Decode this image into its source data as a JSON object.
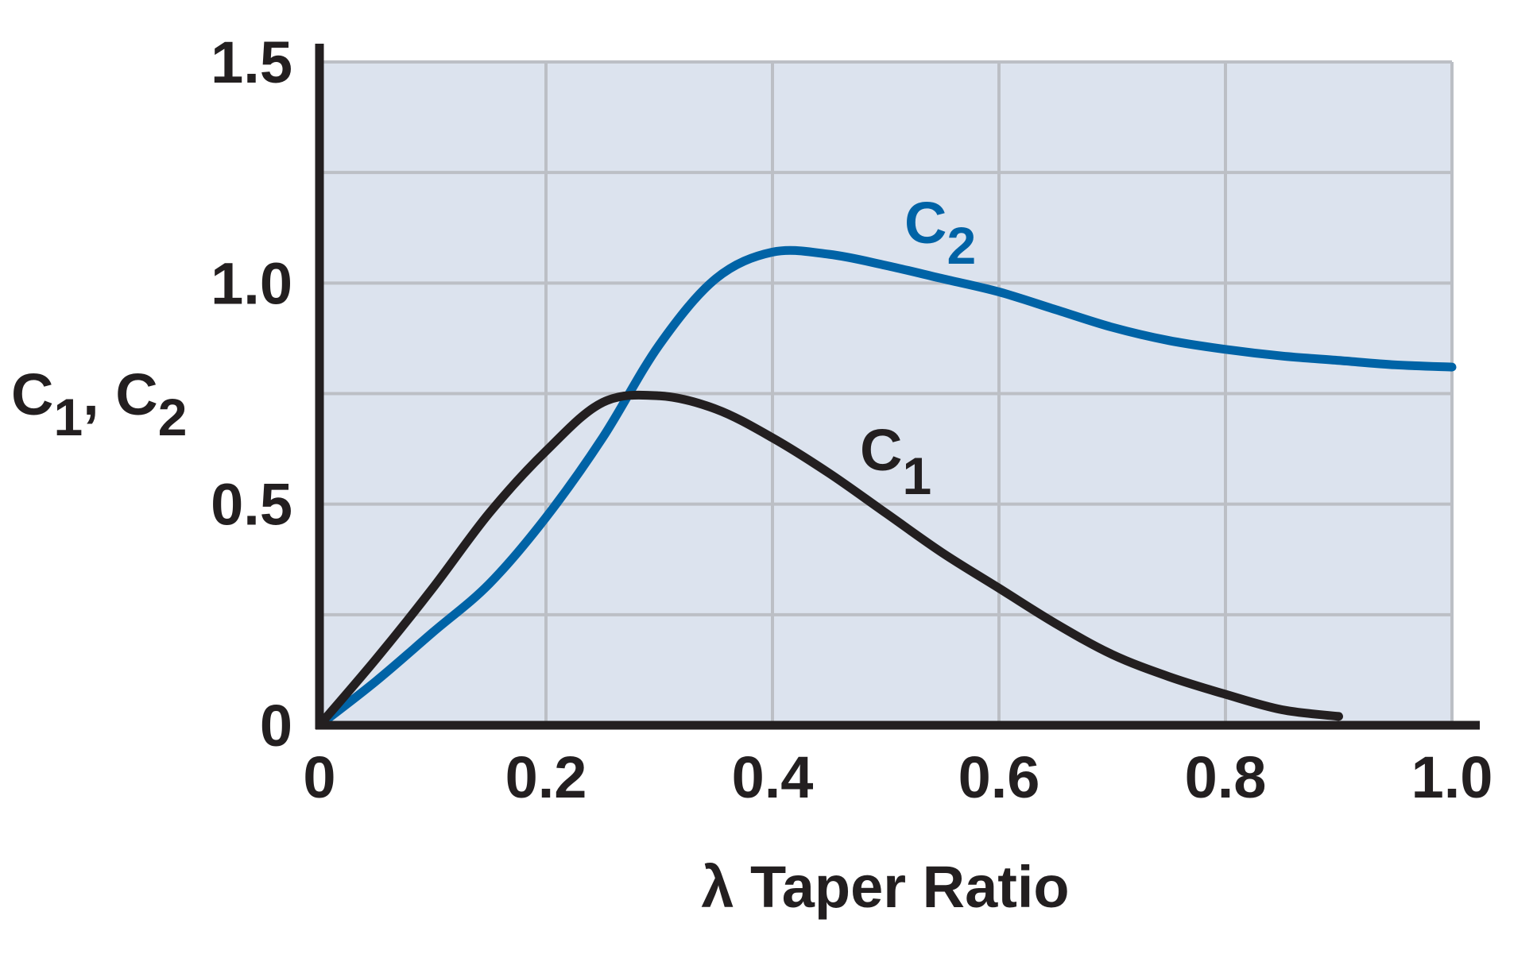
{
  "chart_data": {
    "type": "line",
    "title": "",
    "xlabel": "λ  Taper Ratio",
    "ylabel": {
      "main": "C",
      "sub1": "1",
      "sep": ", ",
      "main2": "C",
      "sub2": "2"
    },
    "xlim": [
      0,
      1.0
    ],
    "ylim": [
      0,
      1.5
    ],
    "xticks": [
      0,
      0.2,
      0.4,
      0.6,
      0.8,
      1.0
    ],
    "xtick_labels": [
      "0",
      "0.2",
      "0.4",
      "0.6",
      "0.8",
      "1.0"
    ],
    "yticks": [
      0,
      0.5,
      1.0,
      1.5
    ],
    "ytick_labels": [
      "0",
      "0.5",
      "1.0",
      "1.5"
    ],
    "grid": true,
    "grid_y_minor": [
      0.25,
      0.75,
      1.25
    ],
    "plot_background": "#dce3ee",
    "grid_color": "#bcbfc5",
    "axis_color": "#231f20",
    "series": [
      {
        "name": "C1",
        "label": {
          "main": "C",
          "sub": "1"
        },
        "color": "#231f20",
        "x": [
          0,
          0.05,
          0.1,
          0.15,
          0.2,
          0.25,
          0.3,
          0.35,
          0.4,
          0.45,
          0.5,
          0.55,
          0.6,
          0.65,
          0.7,
          0.75,
          0.8,
          0.85,
          0.9
        ],
        "y": [
          0,
          0.15,
          0.31,
          0.48,
          0.62,
          0.73,
          0.745,
          0.715,
          0.65,
          0.57,
          0.48,
          0.39,
          0.31,
          0.23,
          0.16,
          0.11,
          0.07,
          0.035,
          0.02
        ]
      },
      {
        "name": "C2",
        "label": {
          "main": "C",
          "sub": "2"
        },
        "color": "#0063a6",
        "x": [
          0,
          0.05,
          0.1,
          0.15,
          0.2,
          0.25,
          0.3,
          0.35,
          0.4,
          0.45,
          0.5,
          0.55,
          0.6,
          0.65,
          0.7,
          0.75,
          0.8,
          0.85,
          0.9,
          0.95,
          1.0
        ],
        "y": [
          0,
          0.1,
          0.21,
          0.32,
          0.47,
          0.65,
          0.86,
          1.01,
          1.07,
          1.065,
          1.04,
          1.01,
          0.98,
          0.94,
          0.9,
          0.87,
          0.85,
          0.835,
          0.825,
          0.815,
          0.81
        ]
      }
    ]
  }
}
